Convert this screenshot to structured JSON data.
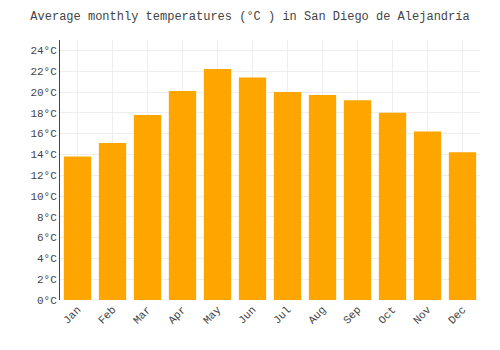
{
  "chart_data": {
    "type": "bar",
    "title": "Average monthly temperatures (°C ) in San Diego de Alejandría",
    "categories": [
      "Jan",
      "Feb",
      "Mar",
      "Apr",
      "May",
      "Jun",
      "Jul",
      "Aug",
      "Sep",
      "Oct",
      "Nov",
      "Dec"
    ],
    "values": [
      13.8,
      15.1,
      17.8,
      20.1,
      22.2,
      21.4,
      20.0,
      19.7,
      19.2,
      18.0,
      16.2,
      14.2
    ],
    "color": "#FFA500",
    "ylim": [
      0,
      25
    ],
    "yticks": [
      {
        "value": 0,
        "label": "0°C"
      },
      {
        "value": 2,
        "label": "2°C"
      },
      {
        "value": 4,
        "label": "4°C"
      },
      {
        "value": 6,
        "label": "6°C"
      },
      {
        "value": 8,
        "label": "8°C"
      },
      {
        "value": 10,
        "label": "10°C"
      },
      {
        "value": 12,
        "label": "12°C"
      },
      {
        "value": 14,
        "label": "14°C"
      },
      {
        "value": 16,
        "label": "16°C"
      },
      {
        "value": 18,
        "label": "18°C"
      },
      {
        "value": 20,
        "label": "20°C"
      },
      {
        "value": 22,
        "label": "22°C"
      },
      {
        "value": 24,
        "label": "24°C"
      }
    ],
    "grid": true
  }
}
